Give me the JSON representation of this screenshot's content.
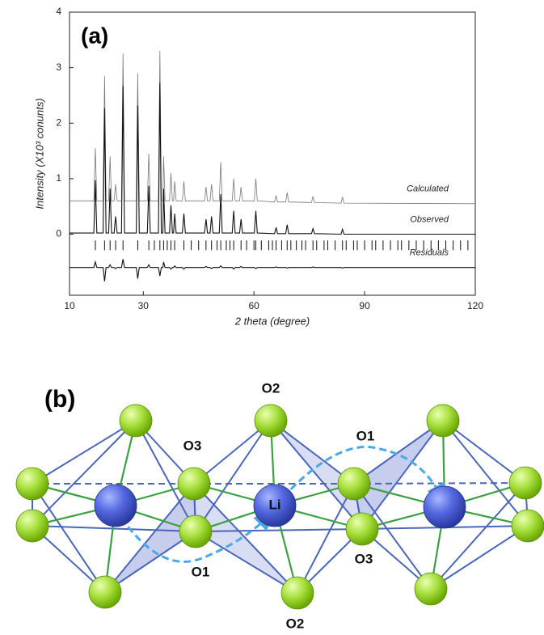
{
  "chart_data": {
    "type": "line",
    "panel_label": "(a)",
    "x_label": "2 theta (degree)",
    "y_label": "Intensity (X10³ conunts)",
    "xlim": [
      10,
      120
    ],
    "xticks": [
      10,
      30,
      60,
      90,
      120
    ],
    "ylim": [
      -1.1,
      4
    ],
    "yticks": [
      0,
      1,
      2,
      3,
      4
    ],
    "x": [
      10,
      16.6,
      17,
      17.4,
      19.1,
      19.5,
      19.9,
      20.6,
      21,
      21.4,
      22.1,
      22.5,
      22.9,
      24.1,
      24.5,
      24.9,
      28.1,
      28.5,
      28.9,
      31.1,
      31.5,
      31.9,
      34.1,
      34.5,
      34.9,
      35.3,
      35.5,
      35.9,
      37.1,
      37.5,
      37.9,
      38.2,
      38.5,
      38.9,
      40.6,
      41,
      41.4,
      46.6,
      47,
      47.4,
      48.1,
      48.5,
      48.9,
      50.6,
      51,
      51.4,
      54.1,
      54.5,
      54.9,
      56.1,
      56.5,
      56.9,
      60.1,
      60.5,
      60.9,
      65.6,
      66,
      66.4,
      68.6,
      69,
      69.4,
      75.6,
      76,
      76.4,
      83.6,
      84,
      84.4,
      120
    ],
    "series": [
      {
        "name": "Calculated",
        "color": "#777777",
        "values": [
          0.6,
          0.6,
          1.55,
          0.6,
          0.6,
          2.85,
          0.6,
          0.6,
          1.4,
          0.6,
          0.6,
          0.9,
          0.6,
          0.6,
          3.25,
          0.6,
          0.6,
          2.9,
          0.6,
          0.6,
          1.45,
          0.6,
          0.6,
          3.3,
          0.6,
          0.6,
          1.4,
          0.6,
          0.6,
          1.1,
          0.6,
          0.6,
          0.95,
          0.6,
          0.6,
          0.95,
          0.6,
          0.6,
          0.85,
          0.6,
          0.6,
          0.9,
          0.6,
          0.6,
          1.3,
          0.6,
          0.6,
          1.0,
          0.6,
          0.6,
          0.85,
          0.6,
          0.6,
          1.0,
          0.6,
          0.58,
          0.7,
          0.58,
          0.58,
          0.75,
          0.58,
          0.57,
          0.68,
          0.57,
          0.56,
          0.67,
          0.56,
          0.55
        ]
      },
      {
        "name": "Observed",
        "color": "#111111",
        "values": [
          0.02,
          0.02,
          0.97,
          0.02,
          0.02,
          2.27,
          0.02,
          0.02,
          0.82,
          0.02,
          0.02,
          0.32,
          0.02,
          0.02,
          2.67,
          0.02,
          0.02,
          2.32,
          0.02,
          0.02,
          0.87,
          0.02,
          0.02,
          2.72,
          0.02,
          0.02,
          0.82,
          0.02,
          0.02,
          0.52,
          0.02,
          0.02,
          0.37,
          0.02,
          0.02,
          0.37,
          0.02,
          0.02,
          0.27,
          0.02,
          0.02,
          0.32,
          0.02,
          0.02,
          0.72,
          0.02,
          0.02,
          0.42,
          0.02,
          0.02,
          0.27,
          0.02,
          0.02,
          0.42,
          0.02,
          0.01,
          0.12,
          0.01,
          0.01,
          0.17,
          0.01,
          0.01,
          0.1,
          0.01,
          0,
          0.09,
          0,
          0
        ]
      },
      {
        "name": "Residuals",
        "color": "#111111",
        "values": [
          -0.6,
          -0.6,
          -0.5,
          -0.6,
          -0.6,
          -0.85,
          -0.6,
          -0.6,
          -0.55,
          -0.6,
          -0.6,
          -0.62,
          -0.6,
          -0.6,
          -0.45,
          -0.6,
          -0.6,
          -0.8,
          -0.6,
          -0.6,
          -0.55,
          -0.6,
          -0.6,
          -0.75,
          -0.6,
          -0.6,
          -0.5,
          -0.6,
          -0.6,
          -0.63,
          -0.6,
          -0.6,
          -0.57,
          -0.6,
          -0.6,
          -0.63,
          -0.6,
          -0.6,
          -0.58,
          -0.6,
          -0.6,
          -0.62,
          -0.6,
          -0.6,
          -0.57,
          -0.6,
          -0.6,
          -0.63,
          -0.6,
          -0.6,
          -0.58,
          -0.6,
          -0.6,
          -0.62,
          -0.6,
          -0.6,
          -0.59,
          -0.6,
          -0.6,
          -0.61,
          -0.6,
          -0.6,
          -0.59,
          -0.6,
          -0.6,
          -0.61,
          -0.6,
          -0.6
        ]
      }
    ],
    "reflections_y": -0.2,
    "reflections": [
      17,
      19.5,
      21,
      22.5,
      24.5,
      28.5,
      31.5,
      33,
      34.5,
      35.5,
      36.5,
      37.5,
      38.5,
      41,
      43,
      45,
      47,
      48.5,
      50,
      51,
      52.5,
      53.5,
      54.5,
      56.5,
      58,
      60,
      60.5,
      62,
      64,
      65,
      66,
      67.5,
      69,
      70,
      71.5,
      73,
      74,
      76,
      77,
      79,
      80,
      82,
      84,
      85,
      87,
      88,
      90,
      92,
      93,
      95,
      97,
      99,
      100,
      102,
      104,
      106,
      108,
      110,
      112,
      114,
      116,
      118
    ]
  },
  "diagram": {
    "panel_label": "(b)",
    "labels": [
      "O2",
      "O3",
      "O1",
      "Li",
      "O1",
      "O3",
      "O2"
    ]
  }
}
